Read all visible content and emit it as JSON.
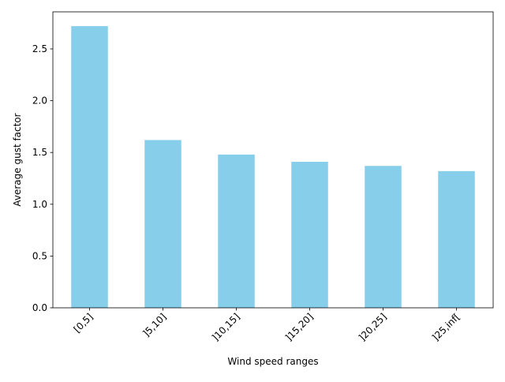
{
  "chart_data": {
    "type": "bar",
    "title": "",
    "xlabel": "Wind speed ranges",
    "ylabel": "Average gust factor",
    "categories": [
      "[0,5]",
      "]5,10]",
      "]10,15]",
      "]15,20]",
      "]20,25]",
      "]25,inf["
    ],
    "values": [
      2.72,
      1.62,
      1.48,
      1.41,
      1.37,
      1.32
    ],
    "ylim": [
      0,
      2.858
    ],
    "yticks": [
      0.0,
      0.5,
      1.0,
      1.5,
      2.0,
      2.5
    ],
    "ytick_labels": [
      "0.0",
      "0.5",
      "1.0",
      "1.5",
      "2.0",
      "2.5"
    ],
    "bar_color": "#87CEEB",
    "grid": false,
    "legend": "none",
    "x_tick_rotation_deg": 45
  }
}
